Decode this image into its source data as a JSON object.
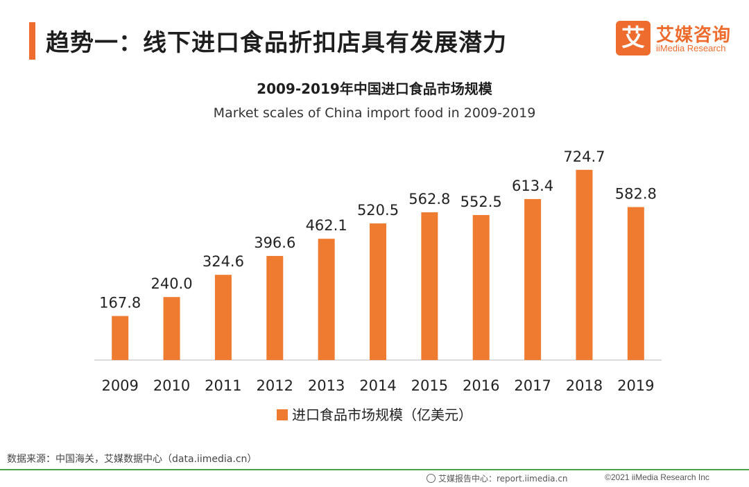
{
  "header": {
    "title": "趋势一：线下进口食品折扣店具有发展潜力",
    "accent_color": "#ee6c2d"
  },
  "logo": {
    "mark": "艾",
    "name_cn": "艾媒咨询",
    "name_en": "iiMedia Research"
  },
  "chart_data": {
    "type": "bar",
    "title": "2009-2019年中国进口食品市场规模",
    "subtitle": "Market scales of China import food in 2009-2019",
    "categories": [
      "2009",
      "2010",
      "2011",
      "2012",
      "2013",
      "2014",
      "2015",
      "2016",
      "2017",
      "2018",
      "2019"
    ],
    "series": [
      {
        "name": "进口食品市场规模（亿美元）",
        "values": [
          167.8,
          240.0,
          324.6,
          396.6,
          462.1,
          520.5,
          562.8,
          552.5,
          613.4,
          724.7,
          582.8
        ],
        "labels": [
          "167.8",
          "240.0",
          "324.6",
          "396.6",
          "462.1",
          "520.5",
          "562.8",
          "552.5",
          "613.4",
          "724.7",
          "582.8"
        ],
        "color": "#ee7b30"
      }
    ],
    "ylim": [
      0,
      740
    ],
    "grid": false,
    "legend_position": "bottom"
  },
  "source": "数据来源：中国海关，艾媒数据中心（data.iimedia.cn）",
  "footer": {
    "left": "艾媒报告中心：report.iimedia.cn",
    "right": "©2021  iiMedia Research  Inc"
  }
}
